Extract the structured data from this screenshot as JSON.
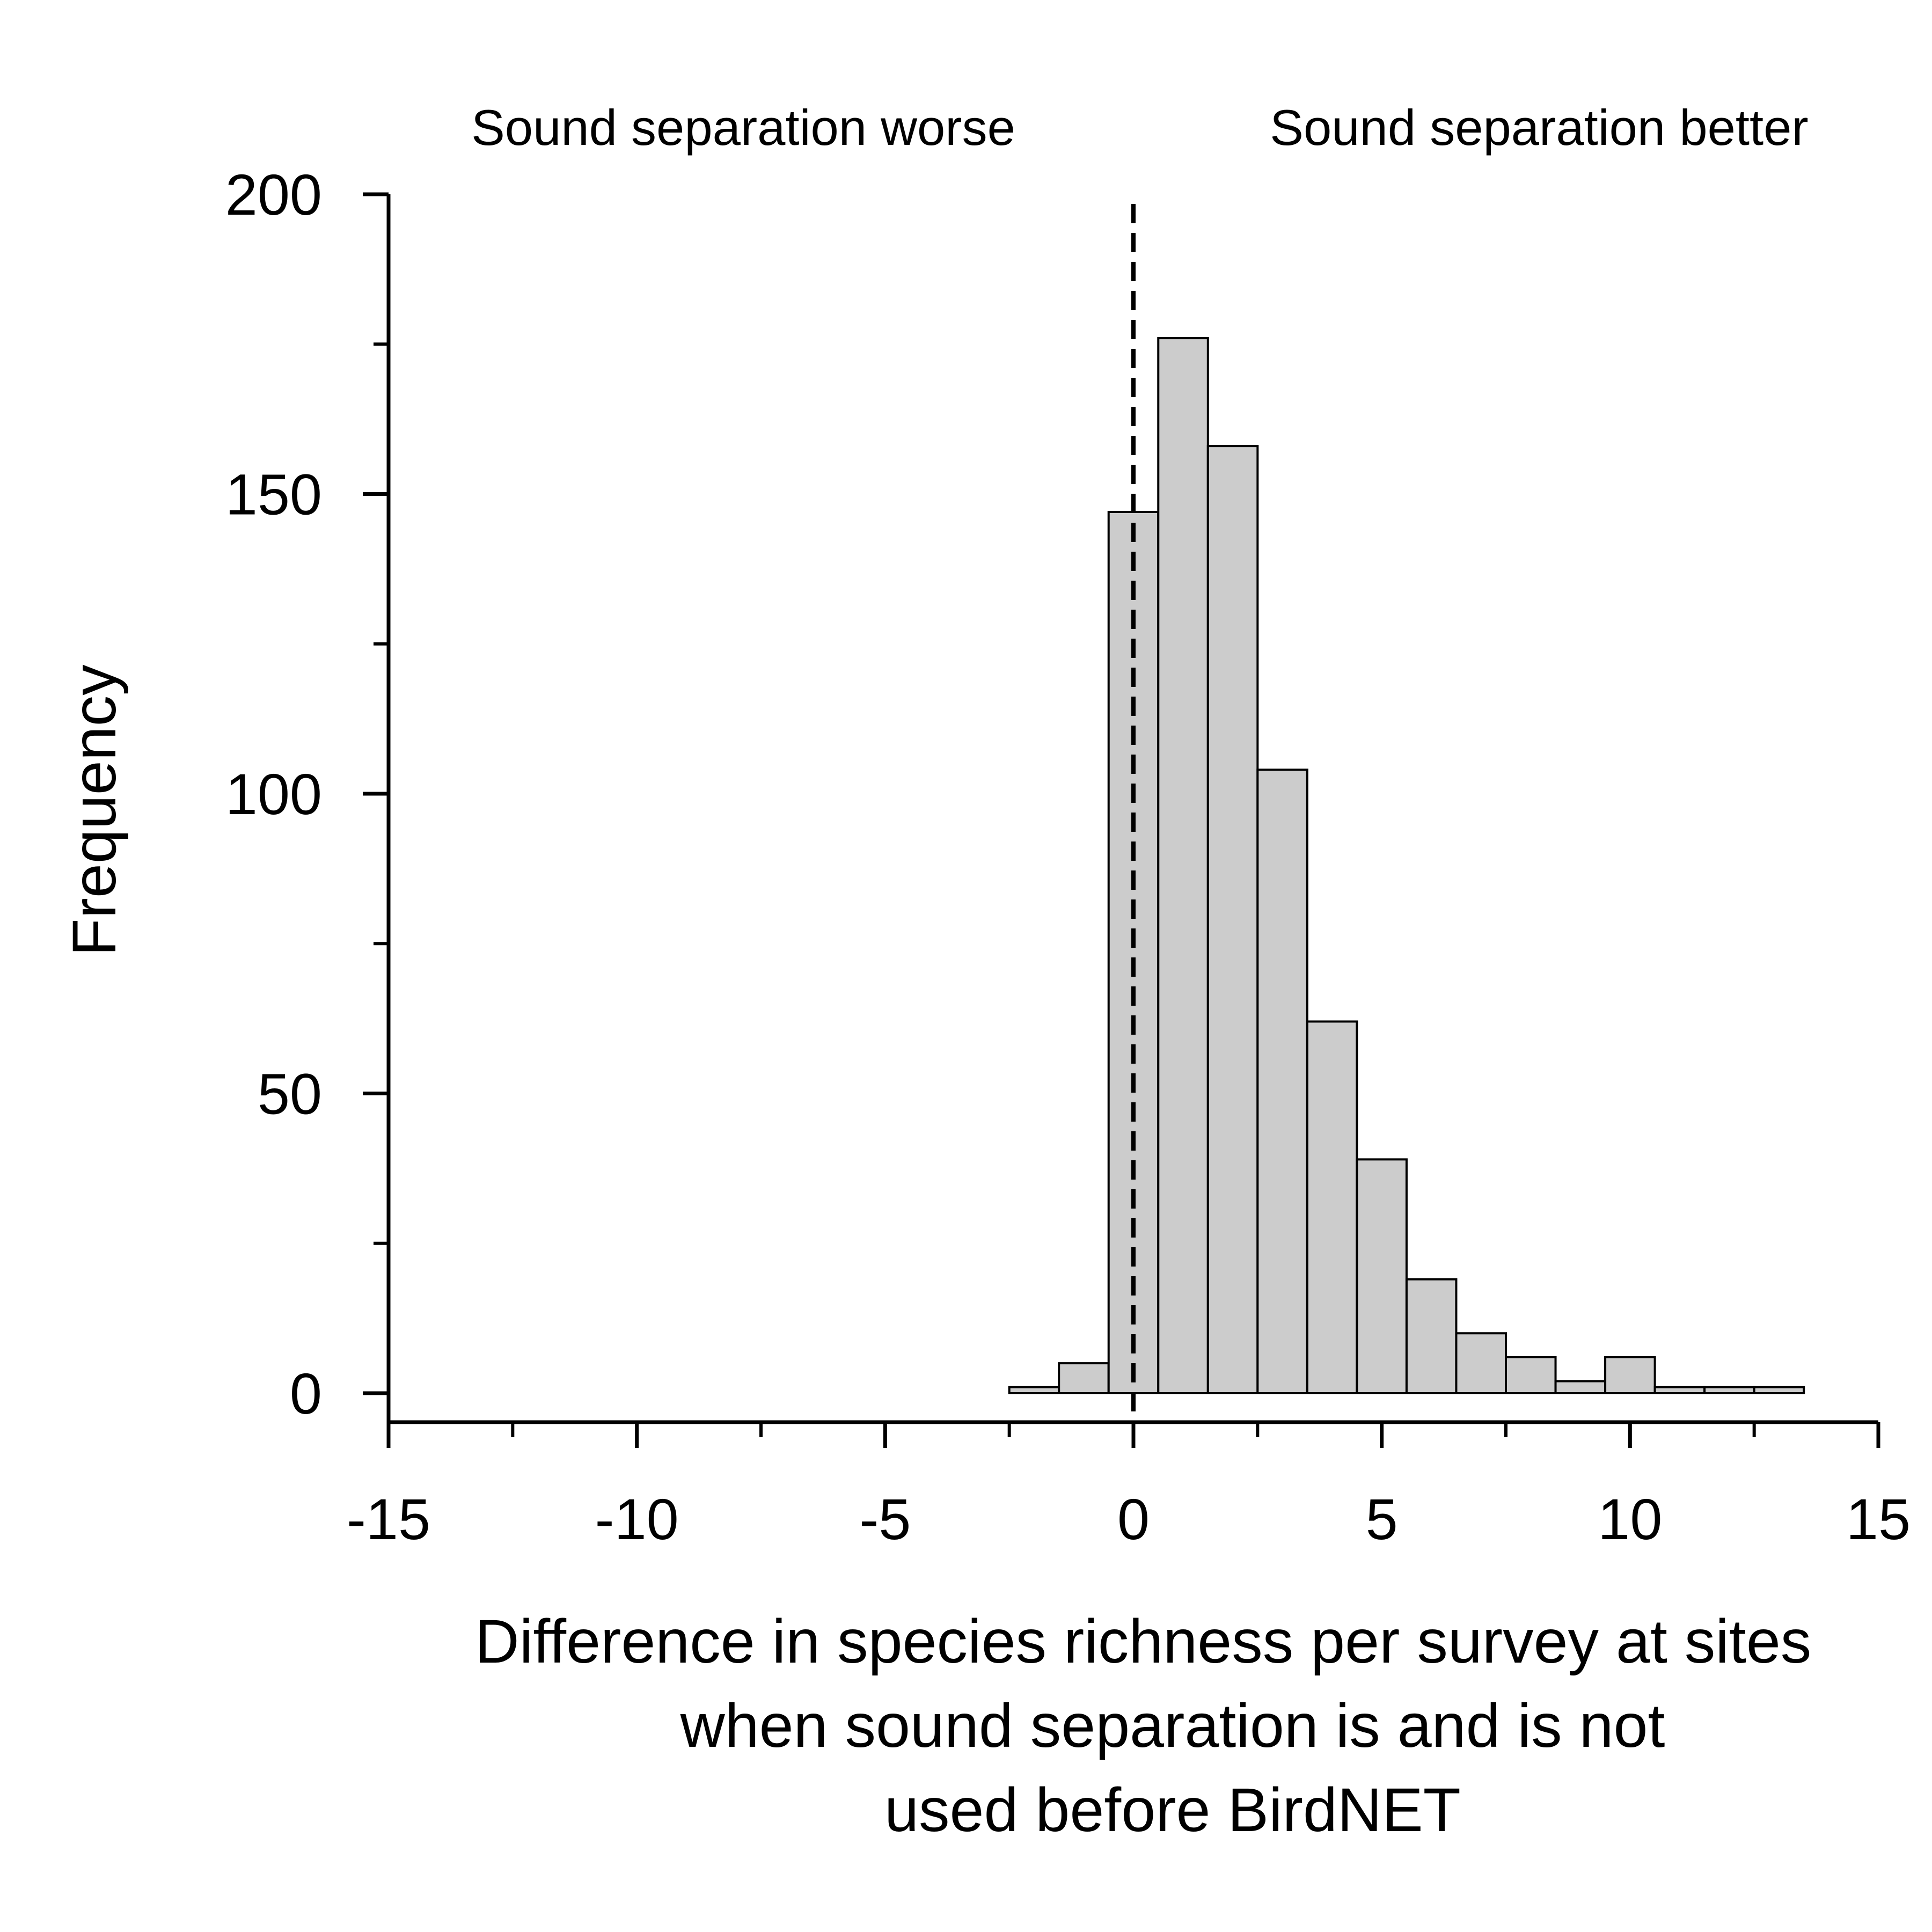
{
  "chart_data": {
    "type": "bar",
    "xlabel_lines": [
      "Difference in species richness per survey at sites",
      "when sound separation is and is not",
      "used before BirdNET"
    ],
    "ylabel": "Frequency",
    "xlim": [
      -15,
      15
    ],
    "ylim": [
      0,
      200
    ],
    "x_ticks": [
      -15,
      -10,
      -5,
      0,
      5,
      10,
      15
    ],
    "x_minor_ticks": [
      -12.5,
      -7.5,
      -2.5,
      2.5,
      7.5,
      12.5
    ],
    "y_ticks": [
      0,
      50,
      100,
      150,
      200
    ],
    "y_minor_ticks": [
      25,
      75,
      125,
      175
    ],
    "bin_width": 1,
    "bins": [
      {
        "x": -2,
        "value": 1
      },
      {
        "x": -1,
        "value": 5
      },
      {
        "x": 0,
        "value": 147
      },
      {
        "x": 1,
        "value": 176
      },
      {
        "x": 2,
        "value": 158
      },
      {
        "x": 3,
        "value": 104
      },
      {
        "x": 4,
        "value": 62
      },
      {
        "x": 5,
        "value": 39
      },
      {
        "x": 6,
        "value": 19
      },
      {
        "x": 7,
        "value": 10
      },
      {
        "x": 8,
        "value": 6
      },
      {
        "x": 9,
        "value": 2
      },
      {
        "x": 10,
        "value": 6
      },
      {
        "x": 11,
        "value": 1
      },
      {
        "x": 12,
        "value": 1
      },
      {
        "x": 13,
        "value": 1
      }
    ],
    "reference_line_x": 0,
    "annotations": {
      "left": "Sound separation worse",
      "right": "Sound separation better"
    },
    "bar_color": "#cccccc",
    "grid": false,
    "legend": "none"
  }
}
